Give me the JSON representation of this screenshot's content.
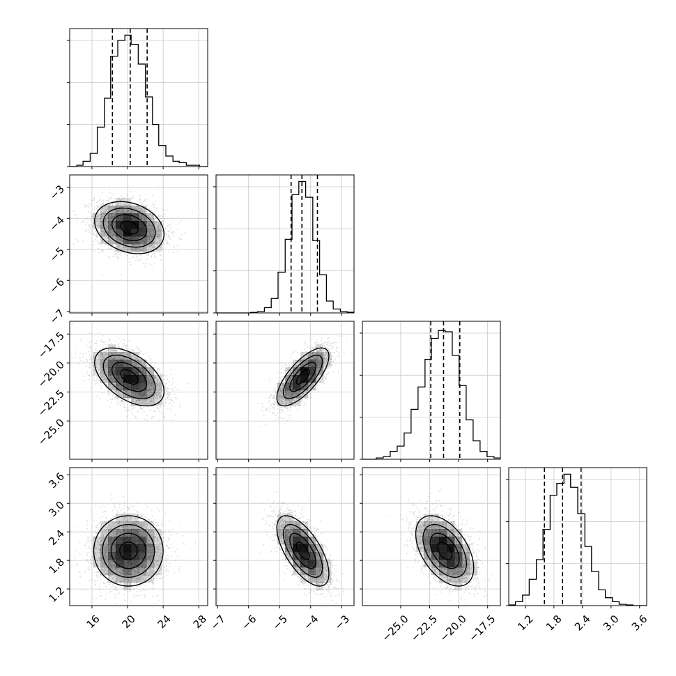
{
  "chart_data": {
    "type": "corner",
    "title": "",
    "n_params": 4,
    "params": [
      {
        "label": "",
        "range": [
          13.5,
          29.0
        ],
        "ticks": [
          16,
          20,
          24,
          28
        ],
        "tick_labels": [
          "16",
          "20",
          "24",
          "28"
        ],
        "quantiles": [
          18.3,
          20.3,
          22.2
        ],
        "median": 20.3,
        "sigma": 1.95,
        "hist_bins": [
          13.5,
          14.3,
          15.0,
          15.8,
          16.6,
          17.4,
          18.1,
          18.9,
          19.7,
          20.4,
          21.2,
          22.0,
          22.8,
          23.5,
          24.3,
          25.1,
          25.8,
          26.6,
          27.4,
          28.1,
          29.0
        ],
        "hist_values": [
          0,
          0.01,
          0.04,
          0.1,
          0.3,
          0.52,
          0.84,
          0.96,
          1.0,
          0.93,
          0.78,
          0.53,
          0.32,
          0.16,
          0.08,
          0.04,
          0.03,
          0.01,
          0.01,
          0
        ],
        "hist_ylim": [
          0,
          1.05
        ],
        "hist_yticks": [
          0,
          0.32,
          0.64,
          0.96
        ]
      },
      {
        "label": "",
        "range": [
          -7.05,
          -2.6
        ],
        "ticks": [
          -7,
          -6,
          -5,
          -4,
          -3
        ],
        "tick_labels": [
          "−7",
          "−6",
          "−5",
          "−4",
          "−3"
        ],
        "quantiles": [
          -4.63,
          -4.28,
          -3.78
        ],
        "median": -4.28,
        "sigma": 0.42,
        "hist_bins": [
          -7.05,
          -6.83,
          -6.6,
          -6.38,
          -6.16,
          -5.94,
          -5.71,
          -5.49,
          -5.27,
          -5.05,
          -4.82,
          -4.6,
          -4.38,
          -4.16,
          -3.93,
          -3.71,
          -3.49,
          -3.27,
          -3.04,
          -2.82,
          -2.6
        ],
        "hist_values": [
          0,
          0,
          0,
          0,
          0,
          0.004,
          0.01,
          0.04,
          0.11,
          0.31,
          0.56,
          0.9,
          1.0,
          0.88,
          0.55,
          0.29,
          0.09,
          0.03,
          0.01,
          0.005
        ],
        "hist_ylim": [
          0,
          1.05
        ],
        "hist_yticks": [
          0,
          0.32,
          0.64,
          0.96
        ]
      },
      {
        "label": "",
        "range": [
          -28.3,
          -16.4
        ],
        "ticks": [
          -25.0,
          -22.5,
          -20.0,
          -17.5
        ],
        "tick_labels": [
          "−25.0",
          "−22.5",
          "−20.0",
          "−17.5"
        ],
        "quantiles": [
          -22.4,
          -21.3,
          -19.9
        ],
        "median": -21.3,
        "sigma": 1.25,
        "hist_bins": [
          -28.3,
          -27.7,
          -27.1,
          -26.5,
          -25.9,
          -25.3,
          -24.7,
          -24.1,
          -23.5,
          -22.9,
          -22.35,
          -21.75,
          -21.15,
          -20.55,
          -19.95,
          -19.35,
          -18.75,
          -18.15,
          -17.55,
          -16.95,
          -16.4
        ],
        "hist_values": [
          0,
          0,
          0.01,
          0.02,
          0.06,
          0.1,
          0.2,
          0.38,
          0.55,
          0.76,
          0.92,
          0.98,
          0.97,
          0.79,
          0.56,
          0.3,
          0.14,
          0.06,
          0.02,
          0.01
        ],
        "hist_ylim": [
          0,
          1.05
        ],
        "hist_yticks": [
          0,
          0.32,
          0.64,
          0.96
        ]
      },
      {
        "label": "",
        "range": [
          0.85,
          3.75
        ],
        "ticks": [
          1.2,
          1.8,
          2.4,
          3.0,
          3.6
        ],
        "tick_labels": [
          "1.2",
          "1.8",
          "2.4",
          "3.0",
          "3.6"
        ],
        "quantiles": [
          1.6,
          1.98,
          2.37
        ],
        "median": 1.98,
        "sigma": 0.37,
        "hist_bins": [
          0.85,
          0.99,
          1.14,
          1.28,
          1.43,
          1.57,
          1.72,
          1.86,
          2.01,
          2.15,
          2.3,
          2.45,
          2.59,
          2.74,
          2.88,
          3.03,
          3.17,
          3.32,
          3.46,
          3.61,
          3.75
        ],
        "hist_values": [
          0.005,
          0.03,
          0.08,
          0.2,
          0.35,
          0.58,
          0.84,
          0.93,
          1.0,
          0.9,
          0.7,
          0.45,
          0.26,
          0.12,
          0.06,
          0.03,
          0.01,
          0.005,
          0,
          0
        ],
        "hist_ylim": [
          0,
          1.05
        ],
        "hist_yticks": [
          0,
          0.32,
          0.64,
          0.96
        ]
      }
    ],
    "pairs": [
      {
        "x": 0,
        "y": 1,
        "center": [
          20.2,
          -4.3
        ],
        "rho": -0.25
      },
      {
        "x": 0,
        "y": 2,
        "center": [
          20.2,
          -21.2
        ],
        "rho": -0.5
      },
      {
        "x": 1,
        "y": 2,
        "center": [
          -4.25,
          -21.2
        ],
        "rho": 0.72
      },
      {
        "x": 0,
        "y": 3,
        "center": [
          20.1,
          2.0
        ],
        "rho": 0.0
      },
      {
        "x": 1,
        "y": 3,
        "center": [
          -4.25,
          2.0
        ],
        "rho": -0.65
      },
      {
        "x": 2,
        "y": 3,
        "center": [
          -21.2,
          2.0
        ],
        "rho": -0.48
      }
    ],
    "contour_levels_sigma": [
      0.5,
      1.0,
      1.5,
      2.0
    ],
    "grid": true,
    "colors": {
      "hist_line": "#000000",
      "quantile_line": "#000000",
      "scatter": "#b0b0b0",
      "grid": "#c8c8c8",
      "density": "#000000",
      "contour": "#000000"
    }
  }
}
